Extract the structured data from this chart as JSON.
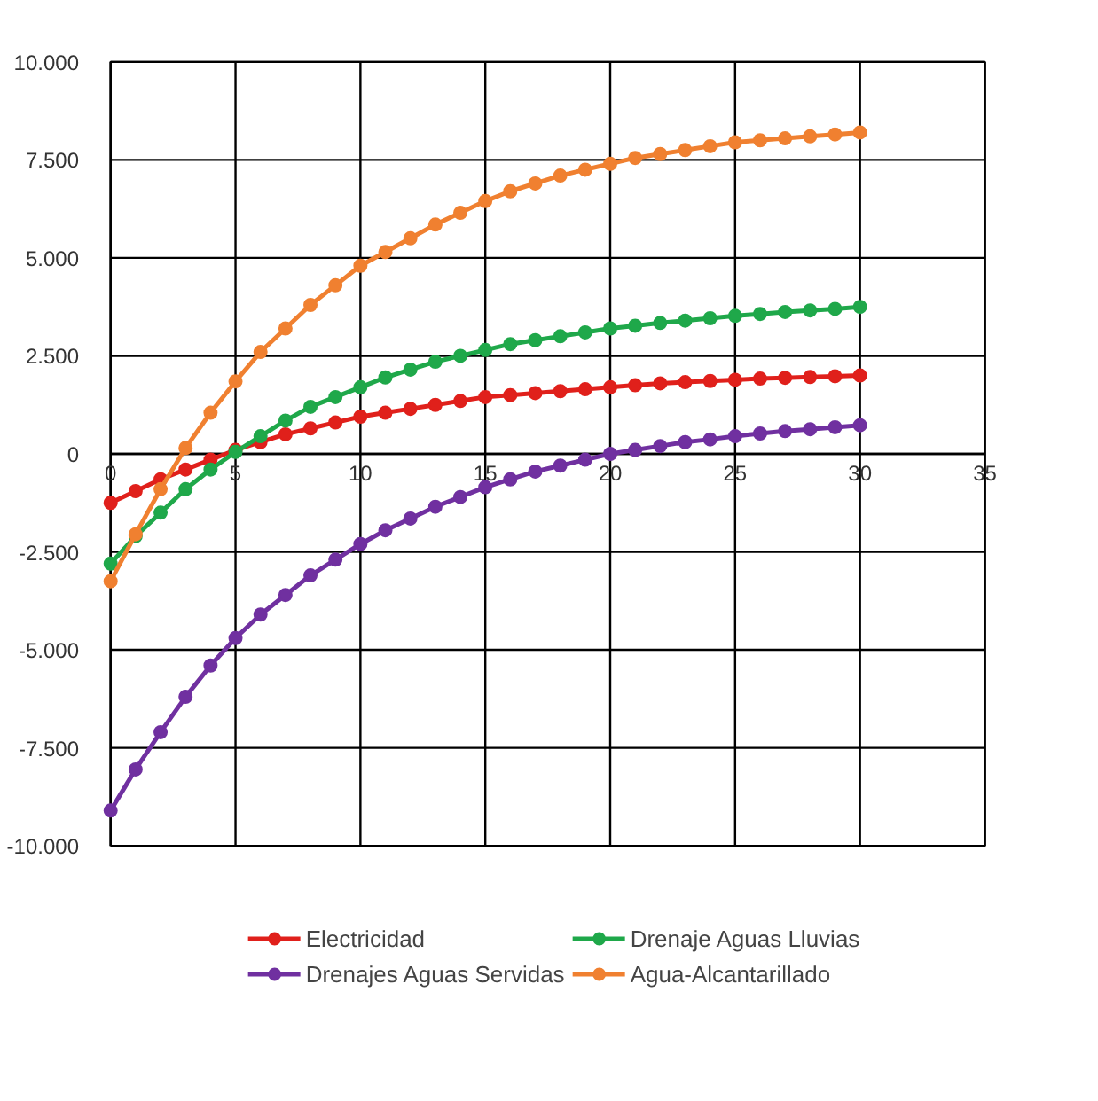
{
  "chart_data": {
    "type": "line",
    "marker": "circle",
    "line_style": "solid",
    "grid": true,
    "legend": "bottom",
    "x": [
      0,
      1,
      2,
      3,
      4,
      5,
      6,
      7,
      8,
      9,
      10,
      11,
      12,
      13,
      14,
      15,
      16,
      17,
      18,
      19,
      20,
      21,
      22,
      23,
      24,
      25,
      26,
      27,
      28,
      29,
      30
    ],
    "xlim": [
      0,
      35
    ],
    "xticks": [
      0,
      5,
      10,
      15,
      20,
      25,
      30,
      35
    ],
    "ylim": [
      -10000,
      10000
    ],
    "yticks": [
      {
        "value": -10000,
        "label": "-10.000"
      },
      {
        "value": -7500,
        "label": "-7.500"
      },
      {
        "value": -5000,
        "label": "-5.000"
      },
      {
        "value": -2500,
        "label": "-2.500"
      },
      {
        "value": 0,
        "label": "0"
      },
      {
        "value": 2500,
        "label": "2.500"
      },
      {
        "value": 5000,
        "label": "5.000"
      },
      {
        "value": 7500,
        "label": "7.500"
      },
      {
        "value": 10000,
        "label": "10.000"
      }
    ],
    "series": [
      {
        "name": "Electricidad",
        "color": "#e0201b",
        "values": [
          -1250,
          -950,
          -650,
          -400,
          -150,
          100,
          300,
          500,
          650,
          800,
          950,
          1050,
          1150,
          1250,
          1350,
          1450,
          1500,
          1550,
          1600,
          1650,
          1700,
          1750,
          1800,
          1830,
          1860,
          1890,
          1920,
          1940,
          1960,
          1980,
          2000
        ]
      },
      {
        "name": "Drenaje Aguas Lluvias",
        "color": "#1fa84a",
        "values": [
          -2800,
          -2100,
          -1500,
          -900,
          -400,
          50,
          450,
          850,
          1200,
          1450,
          1700,
          1950,
          2150,
          2350,
          2500,
          2650,
          2800,
          2900,
          3000,
          3100,
          3200,
          3270,
          3340,
          3400,
          3460,
          3520,
          3570,
          3620,
          3660,
          3700,
          3750
        ]
      },
      {
        "name": "Drenajes Aguas Servidas",
        "color": "#7030a0",
        "values": [
          -9100,
          -8050,
          -7100,
          -6200,
          -5400,
          -4700,
          -4100,
          -3600,
          -3100,
          -2700,
          -2300,
          -1950,
          -1650,
          -1350,
          -1100,
          -850,
          -650,
          -450,
          -300,
          -150,
          0,
          100,
          200,
          300,
          370,
          450,
          520,
          580,
          630,
          680,
          730
        ]
      },
      {
        "name": "Agua-Alcantarillado",
        "color": "#f08030",
        "values": [
          -3250,
          -2050,
          -900,
          150,
          1050,
          1850,
          2600,
          3200,
          3800,
          4300,
          4800,
          5150,
          5500,
          5850,
          6150,
          6450,
          6700,
          6900,
          7100,
          7250,
          7400,
          7550,
          7650,
          7750,
          7850,
          7950,
          8000,
          8050,
          8100,
          8150,
          8200
        ]
      }
    ]
  }
}
